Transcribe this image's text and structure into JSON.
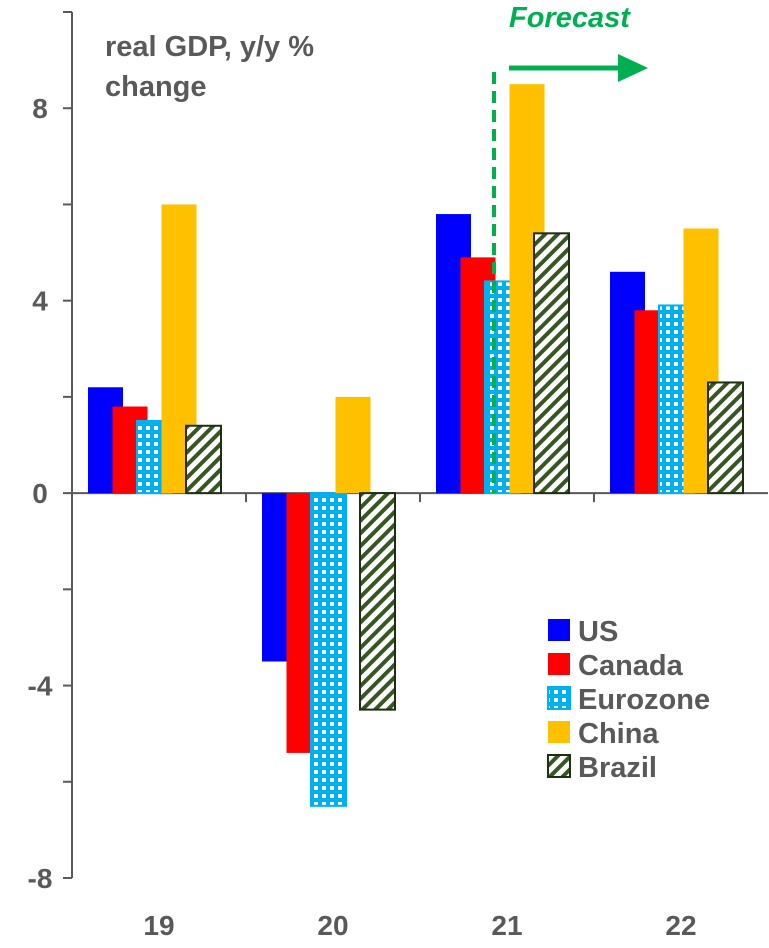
{
  "chart_data": {
    "type": "bar",
    "title": "real GDP, y/y %",
    "subtitle": "change",
    "categories": [
      "19",
      "20",
      "21",
      "22"
    ],
    "ylim": [
      -8,
      10
    ],
    "yticks": [
      "8",
      "4",
      "0",
      "-4",
      "-8"
    ],
    "ytick_values": [
      8,
      4,
      0,
      -4,
      -8
    ],
    "grid": false,
    "legend_position": "bottom-right",
    "annotation": "Forecast",
    "forecast_starts_after": "20",
    "series": [
      {
        "name": "US",
        "values": [
          2.2,
          -3.5,
          5.8,
          4.6
        ],
        "color": "#0000ff",
        "pattern": "solid"
      },
      {
        "name": "Canada",
        "values": [
          1.8,
          -5.4,
          4.9,
          3.8
        ],
        "color": "#ff0000",
        "pattern": "solid"
      },
      {
        "name": "Eurozone",
        "values": [
          1.5,
          -6.5,
          4.4,
          3.9
        ],
        "color": "#00b0f0",
        "pattern": "dotted"
      },
      {
        "name": "China",
        "values": [
          6.0,
          2.0,
          8.5,
          5.5
        ],
        "color": "#ffc000",
        "pattern": "solid"
      },
      {
        "name": "Brazil",
        "values": [
          1.4,
          -4.5,
          5.4,
          2.3
        ],
        "color": "#375623",
        "pattern": "hatched"
      }
    ],
    "colors": {
      "text": "#595959",
      "forecast": "#00b050"
    }
  }
}
